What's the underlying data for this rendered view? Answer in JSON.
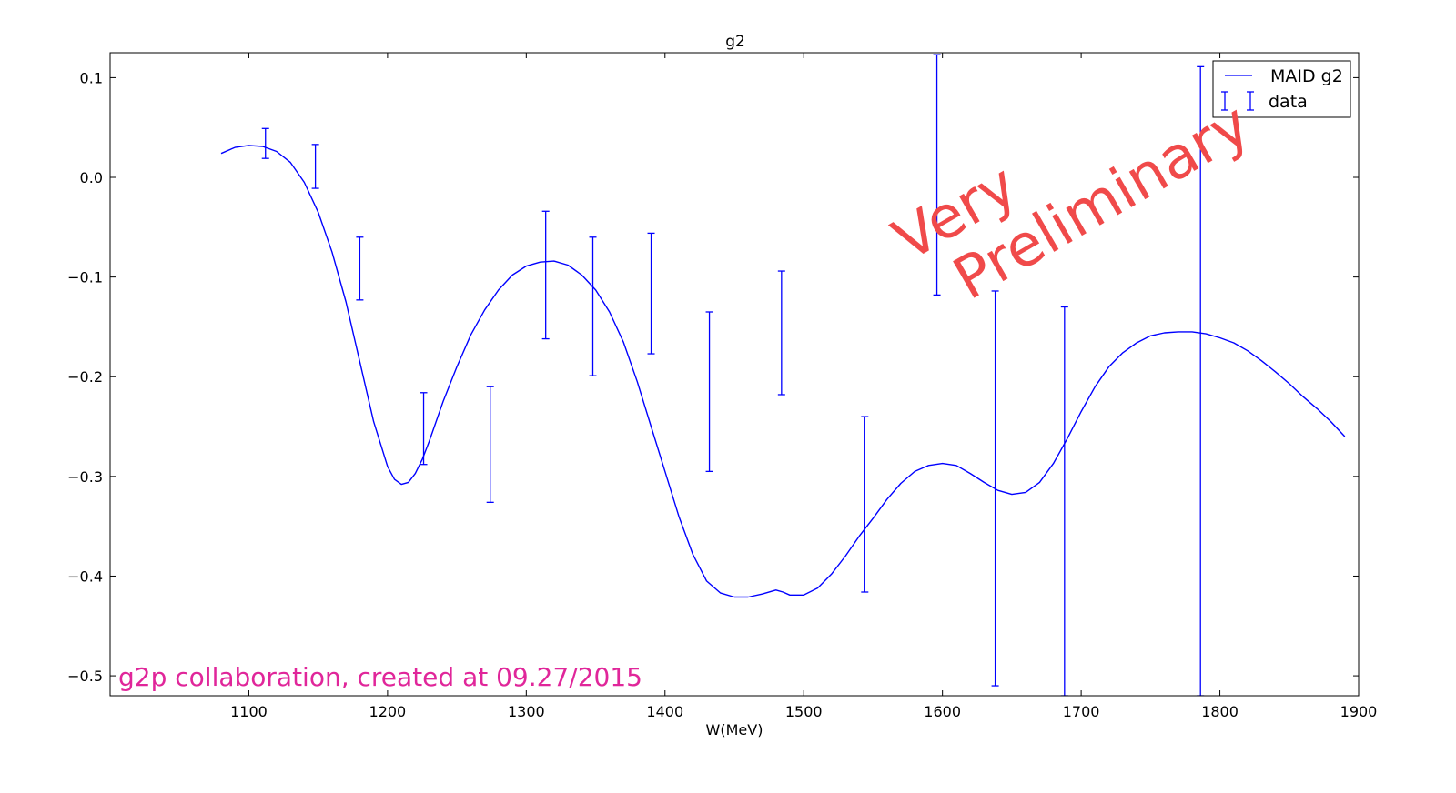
{
  "chart_data": {
    "type": "line",
    "title": "g2",
    "xlabel": "W(MeV)",
    "ylabel": "",
    "xlim": [
      1000,
      1900
    ],
    "ylim": [
      -0.52,
      0.125
    ],
    "xticks": [
      1100,
      1200,
      1300,
      1400,
      1500,
      1600,
      1700,
      1800,
      1900
    ],
    "yticks": [
      0.1,
      0.0,
      -0.1,
      -0.2,
      -0.3,
      -0.4,
      -0.5
    ],
    "xtick_labels": [
      "1100",
      "1200",
      "1300",
      "1400",
      "1500",
      "1600",
      "1700",
      "1800",
      "1900"
    ],
    "ytick_labels": [
      "0.1",
      "0.0",
      "−0.1",
      "−0.2",
      "−0.3",
      "−0.4",
      "−0.5"
    ],
    "grid": false,
    "legend_position": "top-right",
    "series": [
      {
        "name": "MAID g2",
        "type": "line",
        "color": "#0000ff",
        "x": [
          1080,
          1090,
          1100,
          1110,
          1120,
          1130,
          1140,
          1150,
          1160,
          1170,
          1180,
          1190,
          1200,
          1205,
          1210,
          1215,
          1220,
          1225,
          1230,
          1240,
          1250,
          1260,
          1270,
          1280,
          1290,
          1300,
          1310,
          1320,
          1330,
          1340,
          1350,
          1360,
          1370,
          1380,
          1390,
          1400,
          1410,
          1420,
          1430,
          1440,
          1450,
          1460,
          1470,
          1480,
          1485,
          1490,
          1500,
          1510,
          1520,
          1530,
          1540,
          1550,
          1560,
          1570,
          1580,
          1590,
          1600,
          1610,
          1620,
          1630,
          1640,
          1650,
          1660,
          1670,
          1680,
          1690,
          1700,
          1710,
          1720,
          1730,
          1740,
          1750,
          1760,
          1770,
          1780,
          1790,
          1800,
          1810,
          1820,
          1830,
          1840,
          1850,
          1860,
          1870,
          1880,
          1890
        ],
        "y": [
          0.024,
          0.03,
          0.032,
          0.031,
          0.026,
          0.015,
          -0.005,
          -0.035,
          -0.075,
          -0.125,
          -0.185,
          -0.245,
          -0.29,
          -0.303,
          -0.308,
          -0.306,
          -0.297,
          -0.283,
          -0.265,
          -0.225,
          -0.19,
          -0.158,
          -0.133,
          -0.113,
          -0.098,
          -0.089,
          -0.085,
          -0.084,
          -0.088,
          -0.098,
          -0.113,
          -0.135,
          -0.165,
          -0.205,
          -0.25,
          -0.295,
          -0.34,
          -0.378,
          -0.405,
          -0.417,
          -0.421,
          -0.421,
          -0.418,
          -0.414,
          -0.416,
          -0.419,
          -0.419,
          -0.412,
          -0.398,
          -0.38,
          -0.36,
          -0.342,
          -0.323,
          -0.307,
          -0.295,
          -0.289,
          -0.287,
          -0.289,
          -0.297,
          -0.306,
          -0.314,
          -0.318,
          -0.316,
          -0.306,
          -0.287,
          -0.262,
          -0.235,
          -0.21,
          -0.19,
          -0.176,
          -0.166,
          -0.159,
          -0.156,
          -0.155,
          -0.155,
          -0.157,
          -0.161,
          -0.166,
          -0.174,
          -0.184,
          -0.195,
          -0.207,
          -0.22,
          -0.232,
          -0.245,
          -0.26
        ]
      },
      {
        "name": "data",
        "type": "errorbar",
        "color": "#0000ff",
        "points": [
          {
            "x": 1112,
            "low": 0.019,
            "high": 0.049
          },
          {
            "x": 1148,
            "low": -0.011,
            "high": 0.033
          },
          {
            "x": 1180,
            "low": -0.123,
            "high": -0.06
          },
          {
            "x": 1226,
            "low": -0.288,
            "high": -0.216
          },
          {
            "x": 1274,
            "low": -0.326,
            "high": -0.21
          },
          {
            "x": 1314,
            "low": -0.162,
            "high": -0.034
          },
          {
            "x": 1348,
            "low": -0.199,
            "high": -0.06
          },
          {
            "x": 1390,
            "low": -0.177,
            "high": -0.056
          },
          {
            "x": 1432,
            "low": -0.295,
            "high": -0.135
          },
          {
            "x": 1484,
            "low": -0.218,
            "high": -0.094
          },
          {
            "x": 1544,
            "low": -0.416,
            "high": -0.24
          },
          {
            "x": 1596,
            "low": -0.118,
            "high": 0.123
          },
          {
            "x": 1638,
            "low": -0.51,
            "high": -0.114
          },
          {
            "x": 1688,
            "low": -0.52,
            "high": -0.13
          },
          {
            "x": 1786,
            "low": -0.52,
            "high": 0.111
          }
        ]
      }
    ],
    "annotations": [
      {
        "text": "Very",
        "color": "#f04a4a"
      },
      {
        "text": "Preliminary",
        "color": "#f04a4a"
      },
      {
        "text": "g2p collaboration, created at 09.27/2015",
        "color": "#e0269a"
      }
    ]
  }
}
